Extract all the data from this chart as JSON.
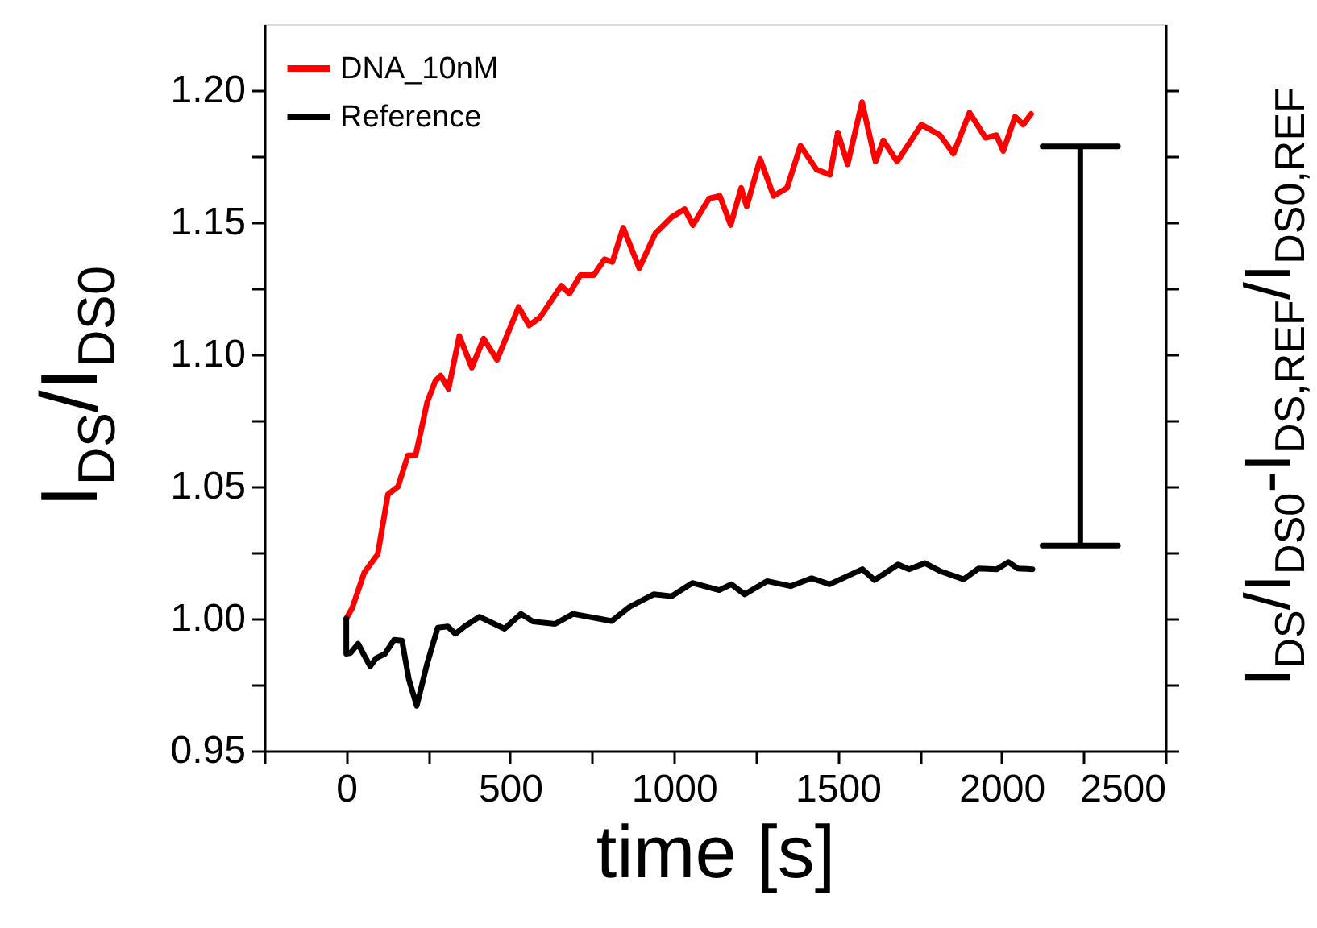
{
  "chart_data": {
    "type": "line",
    "xlabel": "time [s]",
    "ylabel": "I$_{DS}$/I$_{DS0}$",
    "y2label": "I$_{DS}$/I$_{DS0}$-I$_{DS,REF}$/I$_{DS0,REF}$",
    "xlim": [
      -250,
      2500
    ],
    "ylim": [
      0.95,
      1.225
    ],
    "xticks": [
      {
        "value": -250,
        "label": null
      },
      0,
      {
        "value": 250,
        "label": null
      },
      500,
      {
        "value": 750,
        "label": null
      },
      1000,
      {
        "value": 1250,
        "label": null
      },
      1500,
      {
        "value": 1750,
        "label": null
      },
      2000,
      {
        "value": 2250,
        "label": null
      },
      2500
    ],
    "yticks": [
      {
        "value": 0.95,
        "label": "0.95"
      },
      {
        "value": 0.975,
        "label": null
      },
      {
        "value": 1.0,
        "label": "1.00"
      },
      {
        "value": 1.025,
        "label": null
      },
      {
        "value": 1.05,
        "label": "1.05"
      },
      {
        "value": 1.075,
        "label": null
      },
      {
        "value": 1.1,
        "label": "1.10"
      },
      {
        "value": 1.125,
        "label": null
      },
      {
        "value": 1.15,
        "label": "1.15"
      },
      {
        "value": 1.175,
        "label": null
      },
      {
        "value": 1.2,
        "label": "1.20"
      }
    ],
    "grid": false,
    "legend": "top left",
    "marker": "none",
    "line_style": "solid",
    "series": [
      {
        "name": "DNA_10nM",
        "color": "#ff0000",
        "x": [
          0,
          18,
          55,
          96,
          127,
          158,
          188,
          212,
          247,
          272,
          288,
          312,
          345,
          383,
          419,
          460,
          526,
          558,
          591,
          656,
          681,
          714,
          755,
          788,
          812,
          845,
          894,
          943,
          993,
          1033,
          1058,
          1107,
          1140,
          1173,
          1205,
          1222,
          1263,
          1304,
          1345,
          1386,
          1435,
          1476,
          1500,
          1530,
          1574,
          1615,
          1639,
          1681,
          1713,
          1755,
          1812,
          1853,
          1902,
          1951,
          1984,
          2005,
          2041,
          2066,
          2090
        ],
        "values": [
          1.0,
          1.004,
          1.0175,
          1.0244,
          1.047,
          1.05,
          1.0618,
          1.062,
          1.082,
          1.09,
          1.092,
          1.087,
          1.107,
          1.095,
          1.106,
          1.098,
          1.118,
          1.111,
          1.114,
          1.126,
          1.123,
          1.13,
          1.13,
          1.136,
          1.135,
          1.148,
          1.1326,
          1.1458,
          1.152,
          1.155,
          1.149,
          1.159,
          1.16,
          1.149,
          1.163,
          1.156,
          1.174,
          1.16,
          1.163,
          1.179,
          1.17,
          1.168,
          1.184,
          1.172,
          1.1955,
          1.173,
          1.181,
          1.173,
          1.179,
          1.187,
          1.183,
          1.176,
          1.1915,
          1.182,
          1.183,
          1.177,
          1.19,
          1.187,
          1.191
        ]
      },
      {
        "name": "Reference",
        "color": "#000000",
        "x": [
          0,
          0,
          13,
          36,
          55,
          73,
          91,
          118,
          146,
          170,
          191,
          215,
          246,
          279,
          310,
          333,
          364,
          406,
          483,
          533,
          570,
          637,
          692,
          810,
          865,
          938,
          993,
          1056,
          1138,
          1175,
          1216,
          1284,
          1356,
          1420,
          1475,
          1575,
          1612,
          1684,
          1717,
          1766,
          1812,
          1884,
          1930,
          1985,
          2021,
          2049,
          2094
        ],
        "values": [
          1.0,
          0.9867,
          0.987,
          0.9905,
          0.986,
          0.982,
          0.985,
          0.9867,
          0.992,
          0.9917,
          0.977,
          0.967,
          0.9826,
          0.9966,
          0.997,
          0.9943,
          0.9973,
          1.0007,
          0.9962,
          1.0018,
          0.9989,
          0.998,
          1.0018,
          0.9991,
          1.0045,
          1.0092,
          1.0085,
          1.0135,
          1.0108,
          1.013,
          1.0092,
          1.0142,
          1.0123,
          1.0153,
          1.013,
          1.0187,
          1.0146,
          1.0205,
          1.0187,
          1.021,
          1.018,
          1.0149,
          1.019,
          1.0187,
          1.0214,
          1.019,
          1.0187
        ]
      },
      {
        "type": "line",
        "color": "#000000",
        "x": [
          2125,
          2355,
          2240,
          2240,
          2125,
          2355
        ],
        "values": [
          1.0277,
          1.0277,
          1.0277,
          1.1787,
          1.1787,
          1.1787
        ]
      }
    ]
  }
}
